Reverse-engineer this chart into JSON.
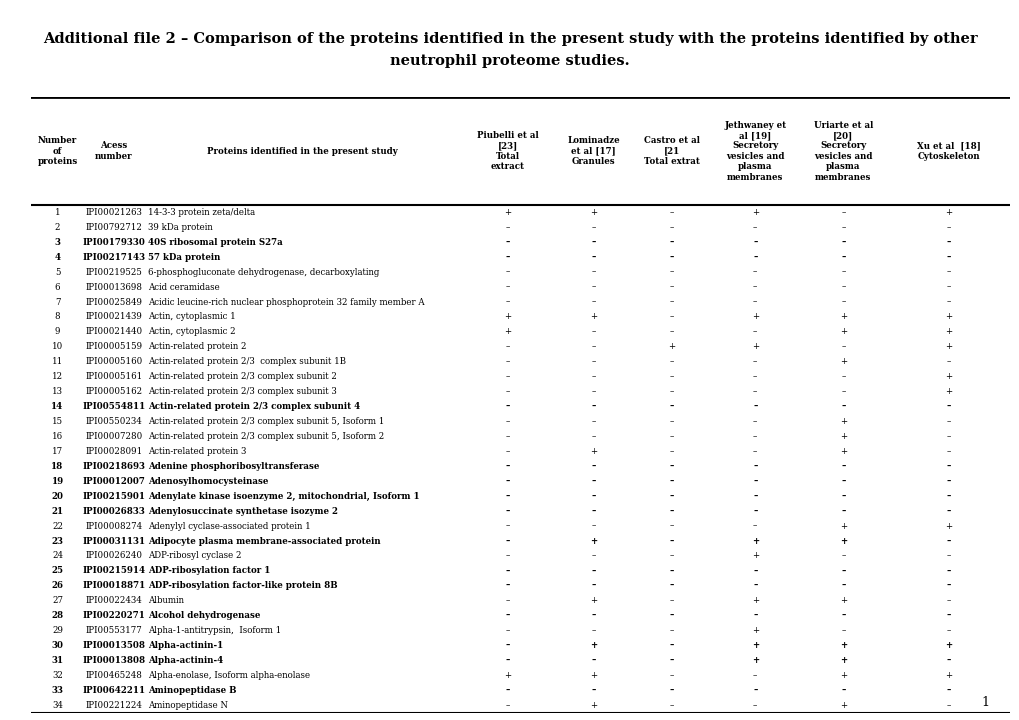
{
  "title_line1": "Additional file 2 – Comparison of the proteins identified in the present study with the proteins identified by other",
  "title_line2": "neutrophil proteome studies.",
  "col_headers": [
    [
      "Number\nof\nproteins",
      "Acess\nnumber",
      "Proteins identified in the present study",
      "Piubelli et al\n[23]\nTotal\nextract",
      "Lominadze\net al [17]\nGranules",
      "Castro et al\n[21\nTotal extrat",
      "Jethwaney et\nal [19]\nSecretory\nvesicles and\nplasma\nmembranes",
      "Uriarte et al\n[20]\nSecretory\nvesicles and\nplasma\nmembranes",
      "Xu et al  [18]\nCytoskeleton"
    ]
  ],
  "rows": [
    [
      1,
      "IPI00021263",
      "14-3-3 protein zeta/delta",
      "+",
      "+",
      "–",
      "+",
      "–",
      "+"
    ],
    [
      2,
      "IPI00792712",
      "39 kDa protein",
      "–",
      "–",
      "–",
      "–",
      "–",
      "–"
    ],
    [
      3,
      "IPI00179330",
      "40S ribosomal protein S27a",
      "–",
      "–",
      "–",
      "–",
      "–",
      "–"
    ],
    [
      4,
      "IPI00217143",
      "57 kDa protein",
      "–",
      "–",
      "–",
      "–",
      "–",
      "–"
    ],
    [
      5,
      "IPI00219525",
      "6-phosphogluconate dehydrogenase, decarboxylating",
      "–",
      "–",
      "–",
      "–",
      "–",
      "–"
    ],
    [
      6,
      "IPI00013698",
      "Acid ceramidase",
      "–",
      "–",
      "–",
      "–",
      "–",
      "–"
    ],
    [
      7,
      "IPI00025849",
      "Acidic leucine-rich nuclear phosphoprotein 32 family member A",
      "–",
      "–",
      "–",
      "–",
      "–",
      "–"
    ],
    [
      8,
      "IPI00021439",
      "Actin, cytoplasmic 1",
      "+",
      "+",
      "–",
      "+",
      "+",
      "+"
    ],
    [
      9,
      "IPI00021440",
      "Actin, cytoplasmic 2",
      "+",
      "–",
      "–",
      "–",
      "+",
      "+"
    ],
    [
      10,
      "IPI00005159",
      "Actin-related protein 2",
      "–",
      "–",
      "+",
      "+",
      "–",
      "+"
    ],
    [
      11,
      "IPI00005160",
      "Actin-related protein 2/3  complex subunit 1B",
      "–",
      "–",
      "–",
      "–",
      "+",
      "–"
    ],
    [
      12,
      "IPI00005161",
      "Actin-related protein 2/3 complex subunit 2",
      "–",
      "–",
      "–",
      "–",
      "–",
      "+"
    ],
    [
      13,
      "IPI00005162",
      "Actin-related protein 2/3 complex subunit 3",
      "–",
      "–",
      "–",
      "–",
      "–",
      "+"
    ],
    [
      14,
      "IPI00554811",
      "Actin-related protein 2/3 complex subunit 4",
      "–",
      "–",
      "–",
      "–",
      "–",
      "–"
    ],
    [
      15,
      "IPI00550234",
      "Actin-related protein 2/3 complex subunit 5, Isoform 1",
      "–",
      "–",
      "–",
      "–",
      "+",
      "–"
    ],
    [
      16,
      "IPI00007280",
      "Actin-related protein 2/3 complex subunit 5, Isoform 2",
      "–",
      "–",
      "–",
      "–",
      "+",
      "–"
    ],
    [
      17,
      "IPI00028091",
      "Actin-related protein 3",
      "–",
      "+",
      "–",
      "–",
      "+",
      "–"
    ],
    [
      18,
      "IPI00218693",
      "Adenine phosphoribosyltransferase",
      "–",
      "–",
      "–",
      "–",
      "–",
      "–"
    ],
    [
      19,
      "IPI00012007",
      "Adenosylhomocysteinase",
      "–",
      "–",
      "–",
      "–",
      "–",
      "–"
    ],
    [
      20,
      "IPI00215901",
      "Adenylate kinase isoenzyme 2, mitochondrial, Isoform 1",
      "–",
      "–",
      "–",
      "–",
      "–",
      "–"
    ],
    [
      21,
      "IPI00026833",
      "Adenylosuccinate synthetase isozyme 2",
      "–",
      "–",
      "–",
      "–",
      "–",
      "–"
    ],
    [
      22,
      "IPI00008274",
      "Adenylyl cyclase-associated protein 1",
      "–",
      "–",
      "–",
      "–",
      "+",
      "+"
    ],
    [
      23,
      "IPI00031131",
      "Adipocyte plasma membrane-associated protein",
      "–",
      "+",
      "–",
      "+",
      "+",
      "–"
    ],
    [
      24,
      "IPI00026240",
      "ADP-ribosyl cyclase 2",
      "–",
      "–",
      "–",
      "+",
      "–",
      "–"
    ],
    [
      25,
      "IPI00215914",
      "ADP-ribosylation factor 1",
      "–",
      "–",
      "–",
      "–",
      "–",
      "–"
    ],
    [
      26,
      "IPI00018871",
      "ADP-ribosylation factor-like protein 8B",
      "–",
      "–",
      "–",
      "–",
      "–",
      "–"
    ],
    [
      27,
      "IPI00022434",
      "Albumin",
      "–",
      "+",
      "–",
      "+",
      "+",
      "–"
    ],
    [
      28,
      "IPI00220271",
      "Alcohol dehydrogenase",
      "–",
      "–",
      "–",
      "–",
      "–",
      "–"
    ],
    [
      29,
      "IPI00553177",
      "Alpha-1-antitrypsin,  Isoform 1",
      "–",
      "–",
      "–",
      "+",
      "–",
      "–"
    ],
    [
      30,
      "IPI00013508",
      "Alpha-actinin-1",
      "–",
      "+",
      "–",
      "+",
      "+",
      "+"
    ],
    [
      31,
      "IPI00013808",
      "Alpha-actinin-4",
      "–",
      "–",
      "–",
      "+",
      "+",
      "–"
    ],
    [
      32,
      "IPI00465248",
      "Alpha-enolase, Isoform alpha-enolase",
      "+",
      "+",
      "–",
      "–",
      "+",
      "+"
    ],
    [
      33,
      "IPI00642211",
      "Aminopeptidase B",
      "–",
      "–",
      "–",
      "–",
      "–",
      "–"
    ],
    [
      34,
      "IPI00221224",
      "Aminopeptidase N",
      "–",
      "+",
      "–",
      "–",
      "+",
      "–"
    ]
  ],
  "bold_rows": [
    3,
    4,
    14,
    18,
    19,
    20,
    21,
    23,
    25,
    26,
    28,
    30,
    31,
    33
  ],
  "page_number": "1"
}
